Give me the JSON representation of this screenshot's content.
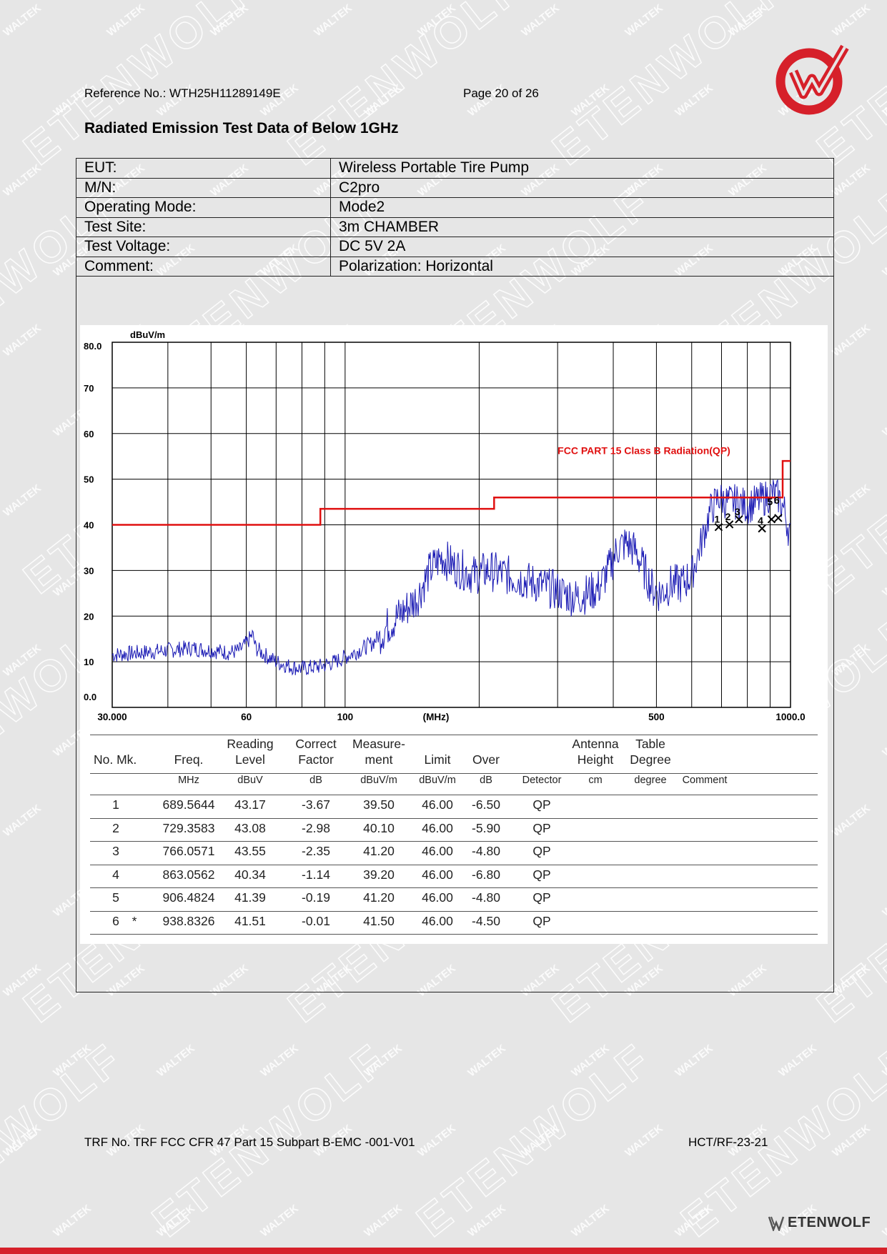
{
  "header": {
    "reference": "Reference No.: WTH25H11289149E",
    "page": "Page 20 of 26"
  },
  "watermark": {
    "small_text": "WALTEK",
    "big_text": "ETENWOLF"
  },
  "brand": {
    "name": "ETENWOLF",
    "logo_icon": "red-check-w-logo",
    "accent": "#d6202a"
  },
  "title": "Radiated Emission Test Data of Below 1GHz",
  "info": [
    {
      "label": "EUT:",
      "value": "Wireless Portable Tire Pump"
    },
    {
      "label": "M/N:",
      "value": "C2pro"
    },
    {
      "label": "Operating Mode:",
      "value": "Mode2"
    },
    {
      "label": "Test Site:",
      "value": "3m CHAMBER"
    },
    {
      "label": "Test Voltage:",
      "value": "DC 5V 2A"
    },
    {
      "label": "Comment:",
      "value": "Polarization: Horizontal"
    }
  ],
  "chart_data": {
    "type": "line",
    "y_unit": "dBuV/m",
    "x_unit": "(MHz)",
    "x_scale": "log",
    "xlim": [
      30,
      1000
    ],
    "ylim": [
      0,
      80
    ],
    "y_ticks": [
      "80.0",
      "70",
      "60",
      "50",
      "40",
      "30",
      "20",
      "10",
      "0.0"
    ],
    "x_ticks": [
      "30.000",
      "60",
      "100",
      "500",
      "1000.0"
    ],
    "grid": true,
    "limit_label": "FCC PART 15 Class B Radiation(QP)",
    "limit_color": "#e01010",
    "trace_color": "#1a1ab4",
    "limit_line": [
      [
        30,
        40
      ],
      [
        88,
        40
      ],
      [
        88,
        43.5
      ],
      [
        216,
        43.5
      ],
      [
        216,
        46
      ],
      [
        960,
        46
      ],
      [
        960,
        54
      ],
      [
        1000,
        54
      ]
    ],
    "trace_anchors": [
      [
        30,
        11.5
      ],
      [
        35,
        12
      ],
      [
        40,
        12.5
      ],
      [
        45,
        13
      ],
      [
        50,
        12.5
      ],
      [
        55,
        12
      ],
      [
        58,
        12.5
      ],
      [
        60,
        14
      ],
      [
        62,
        16
      ],
      [
        63,
        13
      ],
      [
        66,
        11.5
      ],
      [
        70,
        10
      ],
      [
        75,
        9
      ],
      [
        80,
        8.5
      ],
      [
        88,
        9
      ],
      [
        95,
        10
      ],
      [
        105,
        12
      ],
      [
        115,
        14
      ],
      [
        125,
        18
      ],
      [
        135,
        21
      ],
      [
        145,
        24
      ],
      [
        155,
        30
      ],
      [
        165,
        33
      ],
      [
        175,
        31
      ],
      [
        185,
        30
      ],
      [
        195,
        29
      ],
      [
        210,
        30
      ],
      [
        230,
        29
      ],
      [
        250,
        28
      ],
      [
        270,
        27
      ],
      [
        290,
        26
      ],
      [
        310,
        25
      ],
      [
        330,
        24
      ],
      [
        350,
        25
      ],
      [
        370,
        26
      ],
      [
        390,
        30
      ],
      [
        410,
        35
      ],
      [
        430,
        36
      ],
      [
        450,
        34
      ],
      [
        470,
        30
      ],
      [
        490,
        26
      ],
      [
        510,
        25
      ],
      [
        540,
        27
      ],
      [
        570,
        27
      ],
      [
        600,
        29
      ],
      [
        630,
        36
      ],
      [
        660,
        43
      ],
      [
        690,
        46
      ],
      [
        720,
        45
      ],
      [
        760,
        45
      ],
      [
        800,
        44
      ],
      [
        840,
        45
      ],
      [
        880,
        46
      ],
      [
        910,
        47
      ],
      [
        940,
        46
      ],
      [
        970,
        43
      ],
      [
        1000,
        37
      ]
    ],
    "markers": [
      {
        "label": "1",
        "x": 689.5644,
        "y": 39.5
      },
      {
        "label": "2",
        "x": 729.3583,
        "y": 40.1
      },
      {
        "label": "3",
        "x": 766.0571,
        "y": 41.2
      },
      {
        "label": "4",
        "x": 863.0562,
        "y": 39.2
      },
      {
        "label": "5",
        "x": 906.4824,
        "y": 41.2
      },
      {
        "label": "6",
        "x": 938.8326,
        "y": 41.5
      }
    ]
  },
  "table": {
    "headers": [
      {
        "top": "",
        "bottom": "No. Mk."
      },
      {
        "top": "",
        "bottom": "Freq."
      },
      {
        "top": "Reading",
        "bottom": "Level"
      },
      {
        "top": "Correct",
        "bottom": "Factor"
      },
      {
        "top": "Measure-",
        "bottom": "ment"
      },
      {
        "top": "",
        "bottom": "Limit"
      },
      {
        "top": "",
        "bottom": "Over"
      },
      {
        "top": "",
        "bottom": ""
      },
      {
        "top": "Antenna",
        "bottom": "Height"
      },
      {
        "top": "Table",
        "bottom": "Degree"
      },
      {
        "top": "",
        "bottom": ""
      }
    ],
    "units": [
      "",
      "MHz",
      "dBuV",
      "dB",
      "dBuV/m",
      "dBuV/m",
      "dB",
      "Detector",
      "cm",
      "degree",
      "Comment"
    ],
    "rows": [
      {
        "no": "1",
        "mk": "",
        "freq": "689.5644",
        "reading": "43.17",
        "correct": "-3.67",
        "measure": "39.50",
        "limit": "46.00",
        "over": "-6.50",
        "detector": "QP"
      },
      {
        "no": "2",
        "mk": "",
        "freq": "729.3583",
        "reading": "43.08",
        "correct": "-2.98",
        "measure": "40.10",
        "limit": "46.00",
        "over": "-5.90",
        "detector": "QP"
      },
      {
        "no": "3",
        "mk": "",
        "freq": "766.0571",
        "reading": "43.55",
        "correct": "-2.35",
        "measure": "41.20",
        "limit": "46.00",
        "over": "-4.80",
        "detector": "QP"
      },
      {
        "no": "4",
        "mk": "",
        "freq": "863.0562",
        "reading": "40.34",
        "correct": "-1.14",
        "measure": "39.20",
        "limit": "46.00",
        "over": "-6.80",
        "detector": "QP"
      },
      {
        "no": "5",
        "mk": "",
        "freq": "906.4824",
        "reading": "41.39",
        "correct": "-0.19",
        "measure": "41.20",
        "limit": "46.00",
        "over": "-4.80",
        "detector": "QP"
      },
      {
        "no": "6",
        "mk": "*",
        "freq": "938.8326",
        "reading": "41.51",
        "correct": "-0.01",
        "measure": "41.50",
        "limit": "46.00",
        "over": "-4.50",
        "detector": "QP"
      }
    ]
  },
  "footer": {
    "trf": "TRF No. TRF FCC CFR 47 Part 15 Subpart B-EMC -001-V01",
    "code": "HCT/RF-23-21"
  }
}
